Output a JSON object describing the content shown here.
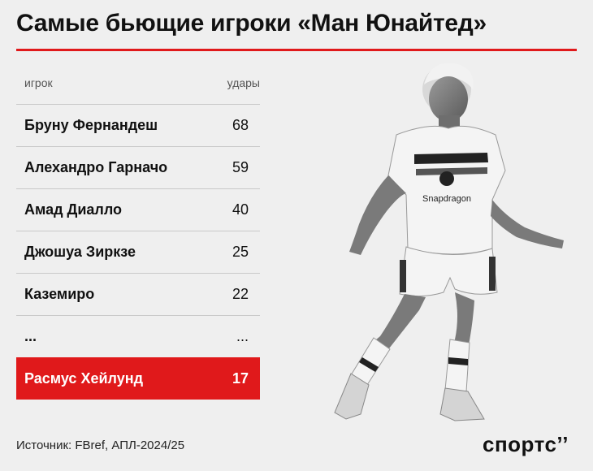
{
  "title": "Самые бьющие игроки «Ман Юнайтед»",
  "chart_data": {
    "type": "table",
    "columns": [
      "игрок",
      "удары"
    ],
    "rows": [
      {
        "player": "Бруну Фернандеш",
        "shots": "68"
      },
      {
        "player": "Алехандро Гарначо",
        "shots": "59"
      },
      {
        "player": "Амад Диалло",
        "shots": "40"
      },
      {
        "player": "Джошуа Зиркзе",
        "shots": "25"
      },
      {
        "player": "Каземиро",
        "shots": "22"
      },
      {
        "player": "...",
        "shots": "..."
      },
      {
        "player": "Расмус Хейлунд",
        "shots": "17",
        "highlight": true
      }
    ]
  },
  "player_image": {
    "sponsor_text": "Snapdragon"
  },
  "footer": {
    "source": "Источник: FBref, АПЛ-2024/25",
    "logo": "спортс’’"
  },
  "colors": {
    "accent": "#e0191b",
    "background": "#efefef"
  }
}
